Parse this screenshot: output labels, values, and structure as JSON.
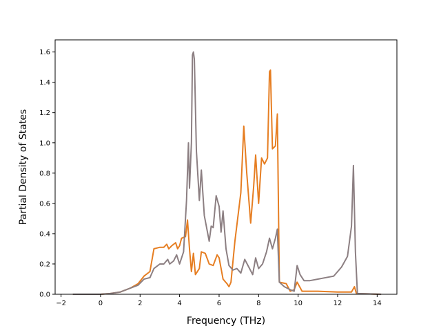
{
  "chart_data": {
    "type": "line",
    "title": "",
    "xlabel": "Frequency (THz)",
    "ylabel": "Partial Density of States",
    "xlim": [
      -2.3,
      15.0
    ],
    "ylim": [
      0.0,
      1.68
    ],
    "xticks": [
      -2,
      0,
      2,
      4,
      6,
      8,
      10,
      12,
      14
    ],
    "xtick_labels": [
      "−2",
      "0",
      "2",
      "4",
      "6",
      "8",
      "10",
      "12",
      "14"
    ],
    "yticks": [
      0.0,
      0.2,
      0.4,
      0.6,
      0.8,
      1.0,
      1.2,
      1.4,
      1.6
    ],
    "ytick_labels": [
      "0.0",
      "0.2",
      "0.4",
      "0.6",
      "0.8",
      "1.0",
      "1.2",
      "1.4",
      "1.6"
    ],
    "grid": false,
    "series": [
      {
        "color": "#e67e22",
        "points": [
          [
            -1.4,
            0.0
          ],
          [
            0.0,
            0.0
          ],
          [
            0.5,
            0.005
          ],
          [
            1.0,
            0.015
          ],
          [
            1.5,
            0.04
          ],
          [
            1.9,
            0.07
          ],
          [
            2.2,
            0.12
          ],
          [
            2.5,
            0.15
          ],
          [
            2.7,
            0.3
          ],
          [
            3.0,
            0.31
          ],
          [
            3.2,
            0.31
          ],
          [
            3.35,
            0.33
          ],
          [
            3.45,
            0.3
          ],
          [
            3.6,
            0.32
          ],
          [
            3.8,
            0.34
          ],
          [
            3.9,
            0.3
          ],
          [
            4.0,
            0.32
          ],
          [
            4.1,
            0.37
          ],
          [
            4.3,
            0.38
          ],
          [
            4.4,
            0.49
          ],
          [
            4.5,
            0.3
          ],
          [
            4.6,
            0.15
          ],
          [
            4.7,
            0.27
          ],
          [
            4.8,
            0.13
          ],
          [
            5.0,
            0.17
          ],
          [
            5.1,
            0.28
          ],
          [
            5.3,
            0.27
          ],
          [
            5.5,
            0.2
          ],
          [
            5.7,
            0.19
          ],
          [
            5.9,
            0.26
          ],
          [
            6.0,
            0.24
          ],
          [
            6.2,
            0.1
          ],
          [
            6.4,
            0.07
          ],
          [
            6.5,
            0.05
          ],
          [
            6.6,
            0.08
          ],
          [
            6.8,
            0.35
          ],
          [
            7.1,
            0.67
          ],
          [
            7.25,
            1.11
          ],
          [
            7.4,
            0.8
          ],
          [
            7.6,
            0.47
          ],
          [
            7.75,
            0.71
          ],
          [
            7.85,
            0.92
          ],
          [
            8.0,
            0.6
          ],
          [
            8.15,
            0.9
          ],
          [
            8.3,
            0.86
          ],
          [
            8.45,
            0.9
          ],
          [
            8.55,
            1.47
          ],
          [
            8.6,
            1.48
          ],
          [
            8.7,
            0.96
          ],
          [
            8.85,
            0.98
          ],
          [
            8.95,
            1.19
          ],
          [
            9.05,
            0.08
          ],
          [
            9.4,
            0.07
          ],
          [
            9.6,
            0.02
          ],
          [
            9.8,
            0.03
          ],
          [
            9.95,
            0.08
          ],
          [
            10.2,
            0.02
          ],
          [
            11.0,
            0.02
          ],
          [
            12.0,
            0.015
          ],
          [
            12.7,
            0.015
          ],
          [
            12.85,
            0.05
          ],
          [
            12.95,
            0.005
          ],
          [
            14.2,
            0.0
          ]
        ]
      },
      {
        "color": "#8c7f82",
        "points": [
          [
            -1.4,
            0.0
          ],
          [
            0.0,
            0.0
          ],
          [
            0.5,
            0.005
          ],
          [
            1.0,
            0.015
          ],
          [
            1.5,
            0.04
          ],
          [
            1.9,
            0.06
          ],
          [
            2.2,
            0.1
          ],
          [
            2.5,
            0.11
          ],
          [
            2.7,
            0.17
          ],
          [
            3.0,
            0.2
          ],
          [
            3.2,
            0.2
          ],
          [
            3.4,
            0.23
          ],
          [
            3.5,
            0.2
          ],
          [
            3.7,
            0.22
          ],
          [
            3.85,
            0.26
          ],
          [
            4.0,
            0.2
          ],
          [
            4.2,
            0.28
          ],
          [
            4.35,
            0.62
          ],
          [
            4.45,
            1.0
          ],
          [
            4.5,
            0.7
          ],
          [
            4.6,
            1.0
          ],
          [
            4.65,
            1.58
          ],
          [
            4.7,
            1.6
          ],
          [
            4.75,
            1.55
          ],
          [
            4.85,
            0.95
          ],
          [
            5.0,
            0.62
          ],
          [
            5.1,
            0.82
          ],
          [
            5.25,
            0.52
          ],
          [
            5.5,
            0.35
          ],
          [
            5.6,
            0.45
          ],
          [
            5.7,
            0.44
          ],
          [
            5.85,
            0.65
          ],
          [
            6.0,
            0.58
          ],
          [
            6.1,
            0.41
          ],
          [
            6.2,
            0.55
          ],
          [
            6.35,
            0.3
          ],
          [
            6.5,
            0.19
          ],
          [
            6.7,
            0.16
          ],
          [
            6.9,
            0.17
          ],
          [
            7.1,
            0.14
          ],
          [
            7.3,
            0.23
          ],
          [
            7.5,
            0.18
          ],
          [
            7.7,
            0.13
          ],
          [
            7.85,
            0.24
          ],
          [
            8.0,
            0.17
          ],
          [
            8.2,
            0.2
          ],
          [
            8.4,
            0.28
          ],
          [
            8.55,
            0.37
          ],
          [
            8.7,
            0.3
          ],
          [
            8.85,
            0.37
          ],
          [
            8.95,
            0.43
          ],
          [
            9.05,
            0.08
          ],
          [
            9.3,
            0.05
          ],
          [
            9.6,
            0.03
          ],
          [
            9.8,
            0.02
          ],
          [
            9.95,
            0.19
          ],
          [
            10.1,
            0.13
          ],
          [
            10.3,
            0.09
          ],
          [
            10.6,
            0.09
          ],
          [
            11.0,
            0.1
          ],
          [
            11.4,
            0.11
          ],
          [
            11.8,
            0.12
          ],
          [
            12.2,
            0.18
          ],
          [
            12.5,
            0.25
          ],
          [
            12.7,
            0.45
          ],
          [
            12.8,
            0.85
          ],
          [
            12.9,
            0.28
          ],
          [
            13.0,
            0.005
          ],
          [
            14.2,
            0.0
          ]
        ]
      }
    ]
  }
}
